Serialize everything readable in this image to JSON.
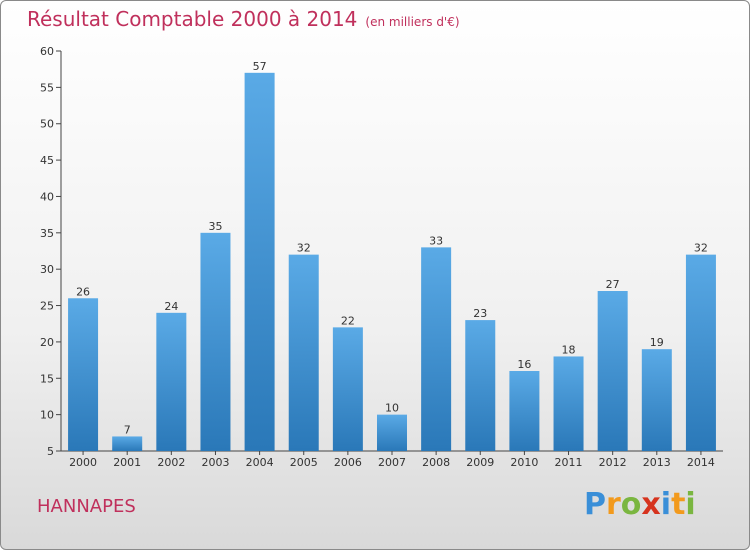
{
  "title": "Résultat Comptable 2000 à 2014",
  "subtitle": "(en milliers d'€)",
  "city": "HANNAPES",
  "logo": {
    "text": "Proxiti",
    "letters": [
      {
        "ch": "P",
        "color": "#3a8fd8"
      },
      {
        "ch": "r",
        "color": "#f29a1d"
      },
      {
        "ch": "o",
        "color": "#7ab640"
      },
      {
        "ch": "x",
        "color": "#d6331e"
      },
      {
        "ch": "i",
        "color": "#3a8fd8"
      },
      {
        "ch": "t",
        "color": "#f29a1d"
      },
      {
        "ch": "i",
        "color": "#7ab640"
      }
    ]
  },
  "colors": {
    "title": "#c0305c",
    "bar_top": "#5aaae6",
    "bar_bottom": "#2a78b8"
  },
  "chart_data": {
    "type": "bar",
    "categories": [
      "2000",
      "2001",
      "2002",
      "2003",
      "2004",
      "2005",
      "2006",
      "2007",
      "2008",
      "2009",
      "2010",
      "2011",
      "2012",
      "2013",
      "2014"
    ],
    "values": [
      26,
      7,
      24,
      35,
      57,
      32,
      22,
      10,
      33,
      23,
      16,
      18,
      27,
      19,
      32
    ],
    "ylim": [
      5,
      60
    ],
    "yticks": [
      5,
      10,
      15,
      20,
      25,
      30,
      35,
      40,
      45,
      50,
      55,
      60
    ],
    "grid": false,
    "legend": "none"
  }
}
